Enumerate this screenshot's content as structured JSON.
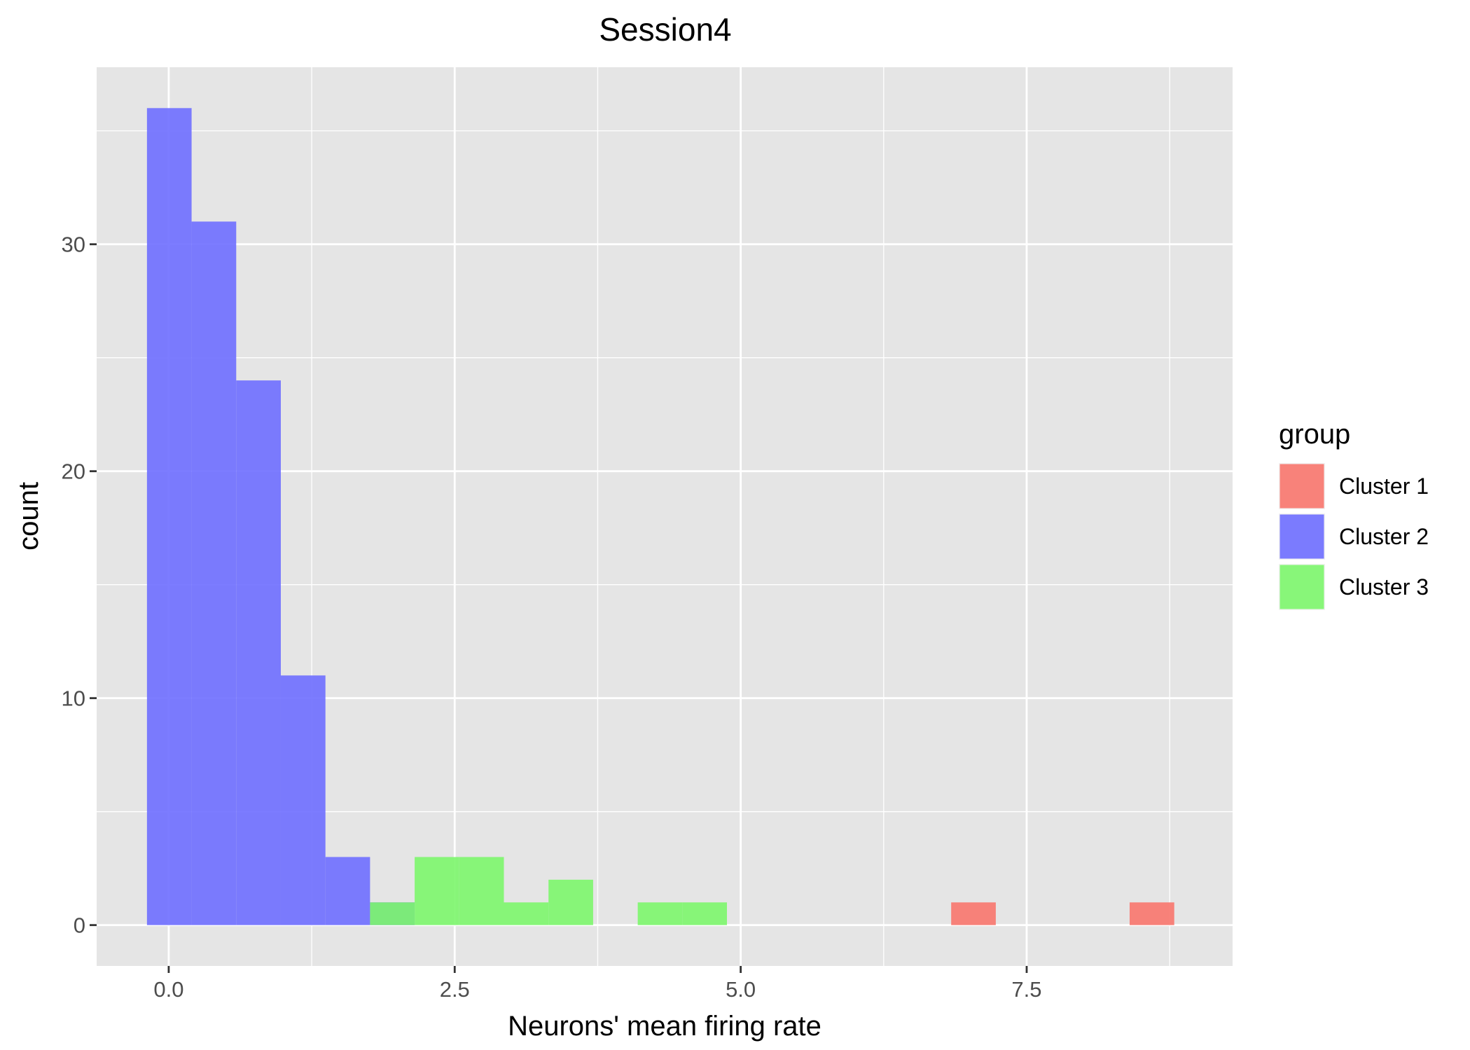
{
  "chart_data": {
    "type": "bar",
    "subtype": "overlaid histogram",
    "title": "Session4",
    "xlabel": "Neurons' mean firing rate",
    "ylabel": "count",
    "xlim": [
      -0.63,
      9.3
    ],
    "ylim": [
      -1.8,
      37.8
    ],
    "x_ticks": [
      0,
      2.5,
      5,
      7.5
    ],
    "x_tick_labels": [
      "0.0",
      "2.5",
      "5.0",
      "7.5"
    ],
    "y_ticks": [
      0,
      10,
      20,
      30
    ],
    "y_tick_labels": [
      "0",
      "10",
      "20",
      "30"
    ],
    "grid": true,
    "panel_background": "#e5e5e5",
    "legend": {
      "title": "group",
      "position": "right",
      "entries": [
        "Cluster 1",
        "Cluster 2",
        "Cluster 3"
      ]
    },
    "series": [
      {
        "name": "Cluster 1",
        "color": "#f8766d",
        "bins": [
          {
            "x0": 6.84,
            "x1": 7.23,
            "count": 1
          },
          {
            "x0": 8.4,
            "x1": 8.79,
            "count": 1
          }
        ]
      },
      {
        "name": "Cluster 2",
        "color": "#6e6eff",
        "bins": [
          {
            "x0": -0.19,
            "x1": 0.2,
            "count": 36
          },
          {
            "x0": 0.2,
            "x1": 0.59,
            "count": 31
          },
          {
            "x0": 0.59,
            "x1": 0.98,
            "count": 24
          },
          {
            "x0": 0.98,
            "x1": 1.37,
            "count": 11
          },
          {
            "x0": 1.37,
            "x1": 1.76,
            "count": 3
          },
          {
            "x0": 1.76,
            "x1": 2.15,
            "count": 1
          }
        ]
      },
      {
        "name": "Cluster 3",
        "color": "#7cf66c",
        "bins": [
          {
            "x0": 1.76,
            "x1": 2.15,
            "count": 1
          },
          {
            "x0": 2.15,
            "x1": 2.54,
            "count": 3
          },
          {
            "x0": 2.54,
            "x1": 2.93,
            "count": 3
          },
          {
            "x0": 2.93,
            "x1": 3.32,
            "count": 1
          },
          {
            "x0": 3.32,
            "x1": 3.71,
            "count": 2
          },
          {
            "x0": 4.1,
            "x1": 4.49,
            "count": 1
          },
          {
            "x0": 4.49,
            "x1": 4.88,
            "count": 1
          }
        ]
      }
    ]
  }
}
